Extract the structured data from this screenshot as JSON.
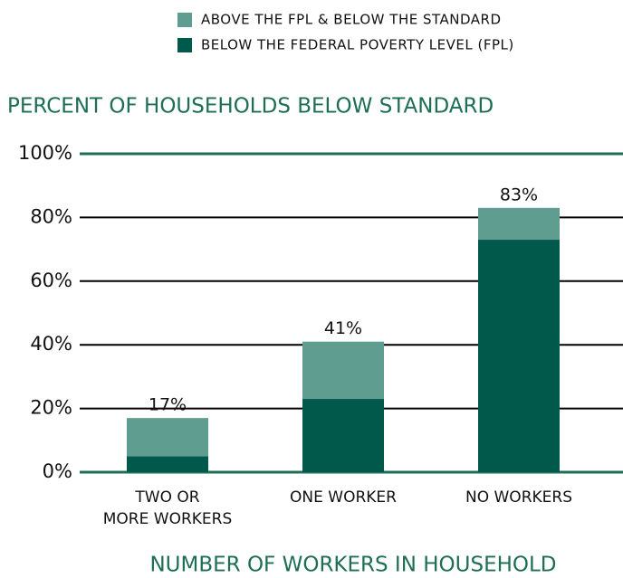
{
  "chart_data": {
    "type": "stacked_bar",
    "title": "PERCENT OF HOUSEHOLDS BELOW STANDARD",
    "x_label": "NUMBER OF WORKERS IN HOUSEHOLD",
    "categories": [
      "TWO OR\nMORE WORKERS",
      "ONE WORKER",
      "NO WORKERS"
    ],
    "series": [
      {
        "name": "BELOW THE FEDERAL POVERTY LEVEL (FPL)",
        "color": "#00594a",
        "values": [
          5,
          23,
          73
        ]
      },
      {
        "name": "ABOVE THE FPL & BELOW THE STANDARD",
        "color": "#5e9d90",
        "values": [
          12,
          18,
          10
        ]
      }
    ],
    "total_labels": [
      "17%",
      "41%",
      "83%"
    ],
    "ylim": [
      0,
      100
    ],
    "yticks": [
      {
        "value": 0,
        "label": "0%"
      },
      {
        "value": 20,
        "label": "20%"
      },
      {
        "value": 40,
        "label": "40%"
      },
      {
        "value": 60,
        "label": "60%"
      },
      {
        "value": 80,
        "label": "80%"
      },
      {
        "value": 100,
        "label": "100%"
      }
    ],
    "grid": true,
    "legend": "top-right"
  }
}
